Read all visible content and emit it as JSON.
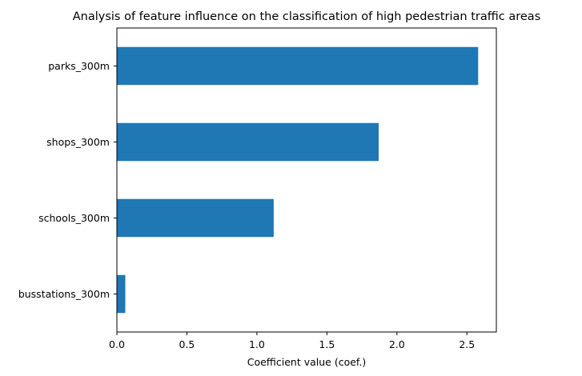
{
  "chart_data": {
    "type": "bar",
    "orientation": "horizontal",
    "title": "Analysis of feature influence on the classification of high pedestrian traffic areas",
    "xlabel": "Coefficient value (coef.)",
    "ylabel": "",
    "categories": [
      "parks_300m",
      "shops_300m",
      "schools_300m",
      "busstations_300m"
    ],
    "values": [
      2.58,
      1.87,
      1.12,
      0.06
    ],
    "xlim": [
      0,
      2.71
    ],
    "xticks": [
      0.0,
      0.5,
      1.0,
      1.5,
      2.0,
      2.5
    ],
    "xtick_labels": [
      "0.0",
      "0.5",
      "1.0",
      "1.5",
      "2.0",
      "2.5"
    ],
    "grid": false,
    "bar_color": "#1f77b4"
  }
}
